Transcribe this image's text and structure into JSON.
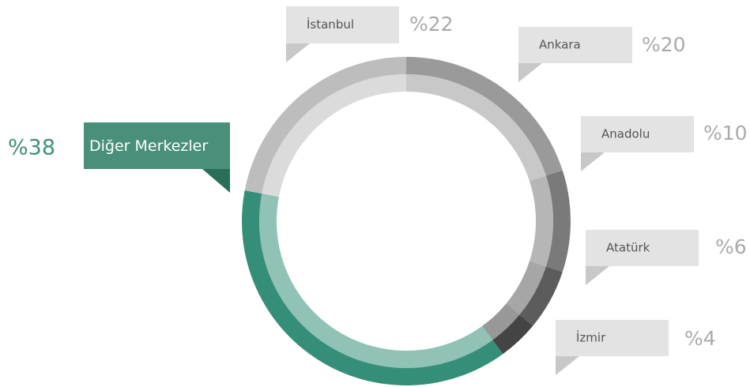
{
  "chart_data": {
    "type": "pie",
    "categories": [
      "Ankara",
      "Anadolu",
      "Atatürk",
      "İzmir",
      "Diğer Merkezler",
      "İstanbul"
    ],
    "values": [
      20,
      10,
      6,
      4,
      38,
      22
    ],
    "value_labels": [
      "%20",
      "%10",
      "%6",
      "%4",
      "%38",
      "%22"
    ],
    "colors": [
      "#9a9a9a",
      "#7a7a7a",
      "#5c5c5c",
      "#444444",
      "#358f78",
      "#bdbdbd"
    ]
  }
}
